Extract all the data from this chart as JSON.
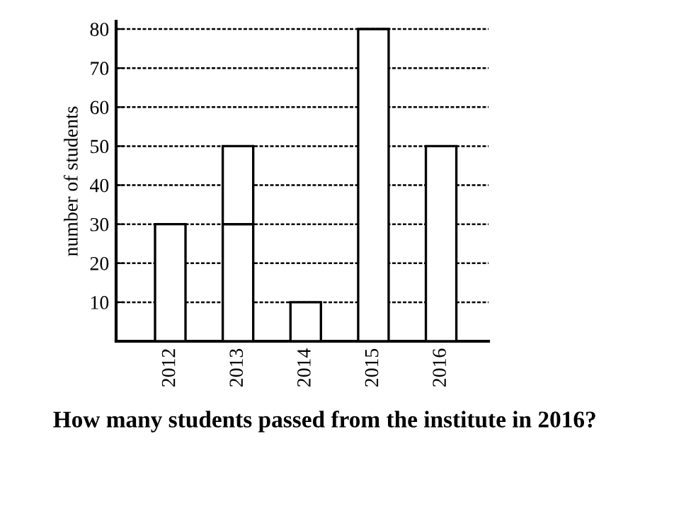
{
  "chart_data": {
    "type": "bar",
    "stacked": true,
    "categories": [
      "2012",
      "2013",
      "2014",
      "2015",
      "2016"
    ],
    "series": [
      {
        "color": "#ffffff",
        "values": [
          30,
          30,
          10,
          80,
          50
        ]
      },
      {
        "color": "#ffffff",
        "values": [
          null,
          20,
          null,
          null,
          null
        ]
      }
    ],
    "ylabel": "number of students",
    "ylim": [
      0,
      82
    ],
    "yticks": [
      10,
      20,
      30,
      40,
      50,
      60,
      70,
      80
    ],
    "grid": "y",
    "annotations": [
      "How many students passed from the institute in 2016?"
    ]
  }
}
